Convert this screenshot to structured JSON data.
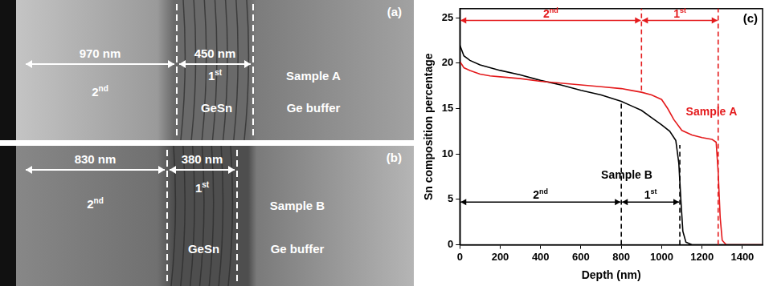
{
  "images": [
    {
      "panel": "(a)",
      "regions": [
        {
          "label": "2nd",
          "thickness": "970 nm"
        },
        {
          "label": "1st",
          "thickness": "450 nm"
        }
      ],
      "layer": "GeSn",
      "substrate": "Ge buffer",
      "sample": "Sample A"
    },
    {
      "panel": "(b)",
      "regions": [
        {
          "label": "2nd",
          "thickness": "830 nm"
        },
        {
          "label": "1st",
          "thickness": "380 nm"
        }
      ],
      "layer": "GeSn",
      "substrate": "Ge buffer",
      "sample": "Sample B"
    }
  ],
  "chart_data": {
    "type": "line",
    "panel": "(c)",
    "x_label": "Depth (nm)",
    "y_label": "Sn composition percentage",
    "xlim": [
      0,
      1500
    ],
    "xticks": [
      0,
      200,
      400,
      600,
      800,
      1000,
      1200,
      1400
    ],
    "ylim": [
      0,
      26
    ],
    "yticks": [
      0,
      5,
      10,
      15,
      20,
      25
    ],
    "grid": false,
    "series": [
      {
        "name": "Sample A",
        "color": "#e41a1c",
        "label_at": [
          1120,
          14.6
        ],
        "x": [
          0,
          20,
          50,
          100,
          150,
          200,
          300,
          400,
          500,
          600,
          700,
          800,
          850,
          900,
          950,
          1000,
          1030,
          1060,
          1100,
          1150,
          1200,
          1250,
          1270,
          1280,
          1290,
          1300,
          1320,
          1400,
          1500
        ],
        "values": [
          20.2,
          19.5,
          19.2,
          18.8,
          18.6,
          18.5,
          18.3,
          18.0,
          17.8,
          17.6,
          17.4,
          17.2,
          17.0,
          16.8,
          16.5,
          16.0,
          15.0,
          13.8,
          12.6,
          12.1,
          11.8,
          11.6,
          11.3,
          8,
          3,
          0.5,
          0,
          0,
          0
        ]
      },
      {
        "name": "Sample B",
        "color": "#000000",
        "label_at": [
          700,
          7.6
        ],
        "x": [
          0,
          20,
          50,
          100,
          200,
          300,
          400,
          500,
          600,
          700,
          800,
          850,
          900,
          950,
          1000,
          1040,
          1070,
          1085,
          1095,
          1105,
          1120,
          1150,
          1200,
          1500
        ],
        "values": [
          22,
          20.8,
          20.3,
          19.8,
          19.2,
          18.7,
          18.1,
          17.6,
          17.0,
          16.5,
          15.8,
          15.3,
          14.8,
          14.0,
          13.2,
          12.5,
          11.5,
          9,
          5,
          1.5,
          0.3,
          0,
          0,
          0
        ]
      }
    ],
    "annotations": [
      {
        "type": "arrow",
        "text": "2nd",
        "x_range": [
          0,
          900
        ],
        "y": 24.7,
        "color": "#e41a1c"
      },
      {
        "type": "arrow",
        "text": "1st",
        "x_range": [
          900,
          1280
        ],
        "y": 24.7,
        "color": "#e41a1c"
      },
      {
        "type": "vline",
        "x": 900,
        "y_range": [
          17,
          26
        ],
        "color": "#e41a1c"
      },
      {
        "type": "vline",
        "x": 1280,
        "y_range": [
          0,
          26
        ],
        "color": "#e41a1c"
      },
      {
        "type": "vline",
        "x": 800,
        "y_range": [
          0,
          15.8
        ],
        "color": "#000000"
      },
      {
        "type": "vline",
        "x": 1090,
        "y_range": [
          0,
          11
        ],
        "color": "#000000"
      },
      {
        "type": "arrow",
        "text": "2nd",
        "x_range": [
          0,
          800
        ],
        "y": 4.7,
        "color": "#000000"
      },
      {
        "type": "arrow",
        "text": "1st",
        "x_range": [
          800,
          1090
        ],
        "y": 4.7,
        "color": "#000000"
      }
    ]
  }
}
